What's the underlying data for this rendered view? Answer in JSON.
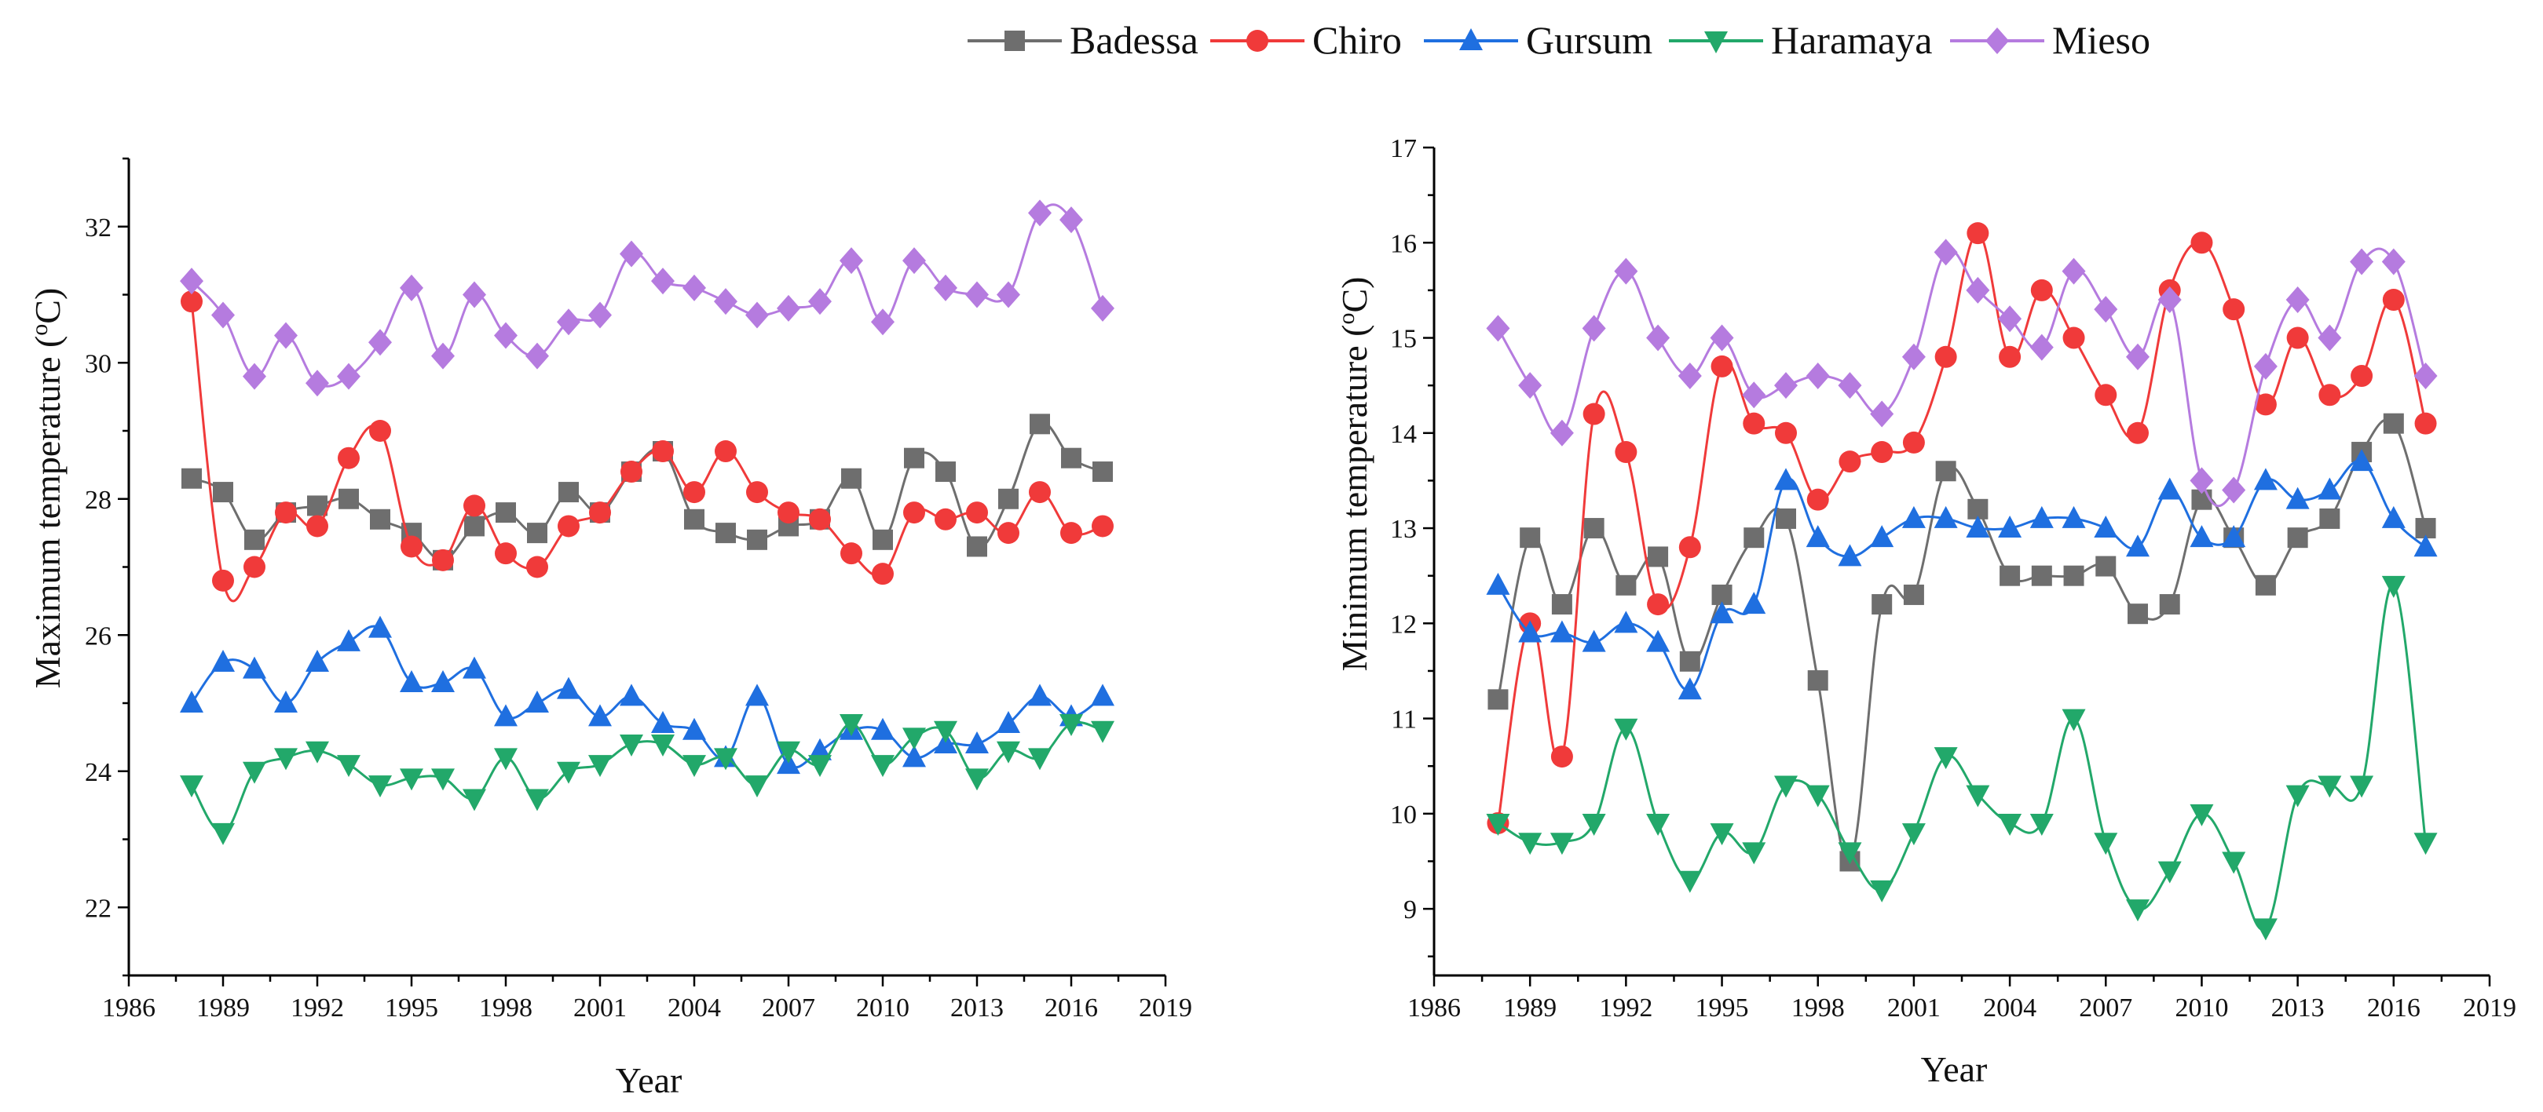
{
  "legend": {
    "entries": [
      {
        "name": "Badessa",
        "color": "#6e6e6e",
        "marker": "square"
      },
      {
        "name": "Chiro",
        "color": "#f03a3a",
        "marker": "circle"
      },
      {
        "name": "Gursum",
        "color": "#1f6fe0",
        "marker": "triangle-up"
      },
      {
        "name": "Haramaya",
        "color": "#22a86a",
        "marker": "triangle-down"
      },
      {
        "name": "Mieso",
        "color": "#b57bdf",
        "marker": "diamond"
      }
    ]
  },
  "chart_data": [
    {
      "type": "line",
      "title": "",
      "xlabel": "Year",
      "ylabel": "Maximum temperature (°C)",
      "ylabel_main": "Maximum temperature (",
      "ylabel_sup": "o",
      "ylabel_end": "C)",
      "xlim": [
        1986,
        2019
      ],
      "ylim": [
        21,
        33
      ],
      "xticks": [
        1986,
        1989,
        1992,
        1995,
        1998,
        2001,
        2004,
        2007,
        2010,
        2013,
        2016,
        2019
      ],
      "yticks": [
        22,
        24,
        26,
        28,
        30,
        32
      ],
      "x": [
        1988,
        1989,
        1990,
        1991,
        1992,
        1993,
        1994,
        1995,
        1996,
        1997,
        1998,
        1999,
        2000,
        2001,
        2002,
        2003,
        2004,
        2005,
        2006,
        2007,
        2008,
        2009,
        2010,
        2011,
        2012,
        2013,
        2014,
        2015,
        2016,
        2017
      ],
      "series": [
        {
          "name": "Badessa",
          "values": [
            28.3,
            28.1,
            27.4,
            27.8,
            27.9,
            28.0,
            27.7,
            27.5,
            27.1,
            27.6,
            27.8,
            27.5,
            28.1,
            27.8,
            28.4,
            28.7,
            27.7,
            27.5,
            27.4,
            27.6,
            27.7,
            28.3,
            27.4,
            28.6,
            28.4,
            27.3,
            28.0,
            29.1,
            28.6,
            28.4
          ]
        },
        {
          "name": "Chiro",
          "values": [
            30.9,
            26.8,
            27.0,
            27.8,
            27.6,
            28.6,
            29.0,
            27.3,
            27.1,
            27.9,
            27.2,
            27.0,
            27.6,
            27.8,
            28.4,
            28.7,
            28.1,
            28.7,
            28.1,
            27.8,
            27.7,
            27.2,
            26.9,
            27.8,
            27.7,
            27.8,
            27.5,
            28.1,
            27.5,
            27.6
          ]
        },
        {
          "name": "Gursum",
          "values": [
            25.0,
            25.6,
            25.5,
            25.0,
            25.6,
            25.9,
            26.1,
            25.3,
            25.3,
            25.5,
            24.8,
            25.0,
            25.2,
            24.8,
            25.1,
            24.7,
            24.6,
            24.2,
            25.1,
            24.1,
            24.3,
            24.6,
            24.6,
            24.2,
            24.4,
            24.4,
            24.7,
            25.1,
            24.8,
            25.1
          ]
        },
        {
          "name": "Haramaya",
          "values": [
            23.8,
            23.1,
            24.0,
            24.2,
            24.3,
            24.1,
            23.8,
            23.9,
            23.9,
            23.6,
            24.2,
            23.6,
            24.0,
            24.1,
            24.4,
            24.4,
            24.1,
            24.2,
            23.8,
            24.3,
            24.1,
            24.7,
            24.1,
            24.5,
            24.6,
            23.9,
            24.3,
            24.2,
            24.7,
            24.6
          ]
        },
        {
          "name": "Mieso",
          "values": [
            31.2,
            30.7,
            29.8,
            30.4,
            29.7,
            29.8,
            30.3,
            31.1,
            30.1,
            31.0,
            30.4,
            30.1,
            30.6,
            30.7,
            31.6,
            31.2,
            31.1,
            30.9,
            30.7,
            30.8,
            30.9,
            31.5,
            30.6,
            31.5,
            31.1,
            31.0,
            31.0,
            32.2,
            32.1,
            30.8
          ]
        }
      ]
    },
    {
      "type": "line",
      "title": "",
      "xlabel": "Year",
      "ylabel": "Minimum temperature (°C)",
      "ylabel_main": "Minimum temperature (",
      "ylabel_sup": "o",
      "ylabel_end": "C)",
      "xlim": [
        1986,
        2019
      ],
      "ylim": [
        8.3,
        17
      ],
      "xticks": [
        1986,
        1989,
        1992,
        1995,
        1998,
        2001,
        2004,
        2007,
        2010,
        2013,
        2016,
        2019
      ],
      "yticks": [
        9,
        10,
        11,
        12,
        13,
        14,
        15,
        16,
        17
      ],
      "x": [
        1988,
        1989,
        1990,
        1991,
        1992,
        1993,
        1994,
        1995,
        1996,
        1997,
        1998,
        1999,
        2000,
        2001,
        2002,
        2003,
        2004,
        2005,
        2006,
        2007,
        2008,
        2009,
        2010,
        2011,
        2012,
        2013,
        2014,
        2015,
        2016,
        2017
      ],
      "series": [
        {
          "name": "Badessa",
          "values": [
            11.2,
            12.9,
            12.2,
            13.0,
            12.4,
            12.7,
            11.6,
            12.3,
            12.9,
            13.1,
            11.4,
            9.5,
            12.2,
            12.3,
            13.6,
            13.2,
            12.5,
            12.5,
            12.5,
            12.6,
            12.1,
            12.2,
            13.3,
            12.9,
            12.4,
            12.9,
            13.1,
            13.8,
            14.1,
            13.0
          ]
        },
        {
          "name": "Chiro",
          "values": [
            9.9,
            12.0,
            10.6,
            14.2,
            13.8,
            12.2,
            12.8,
            14.7,
            14.1,
            14.0,
            13.3,
            13.7,
            13.8,
            13.9,
            14.8,
            16.1,
            14.8,
            15.5,
            15.0,
            14.4,
            14.0,
            15.5,
            16.0,
            15.3,
            14.3,
            15.0,
            14.4,
            14.6,
            15.4,
            14.1
          ]
        },
        {
          "name": "Gursum",
          "values": [
            12.4,
            11.9,
            11.9,
            11.8,
            12.0,
            11.8,
            11.3,
            12.1,
            12.2,
            13.5,
            12.9,
            12.7,
            12.9,
            13.1,
            13.1,
            13.0,
            13.0,
            13.1,
            13.1,
            13.0,
            12.8,
            13.4,
            12.9,
            12.9,
            13.5,
            13.3,
            13.4,
            13.7,
            13.1,
            12.8
          ]
        },
        {
          "name": "Haramaya",
          "values": [
            9.9,
            9.7,
            9.7,
            9.9,
            10.9,
            9.9,
            9.3,
            9.8,
            9.6,
            10.3,
            10.2,
            9.6,
            9.2,
            9.8,
            10.6,
            10.2,
            9.9,
            9.9,
            11.0,
            9.7,
            9.0,
            9.4,
            10.0,
            9.5,
            8.8,
            10.2,
            10.3,
            10.3,
            12.4,
            9.7
          ]
        },
        {
          "name": "Mieso",
          "values": [
            15.1,
            14.5,
            14.0,
            15.1,
            15.7,
            15.0,
            14.6,
            15.0,
            14.4,
            14.5,
            14.6,
            14.5,
            14.2,
            14.8,
            15.9,
            15.5,
            15.2,
            14.9,
            15.7,
            15.3,
            14.8,
            15.4,
            13.5,
            13.4,
            14.7,
            15.4,
            15.0,
            15.8,
            15.8,
            14.6
          ]
        }
      ]
    }
  ]
}
